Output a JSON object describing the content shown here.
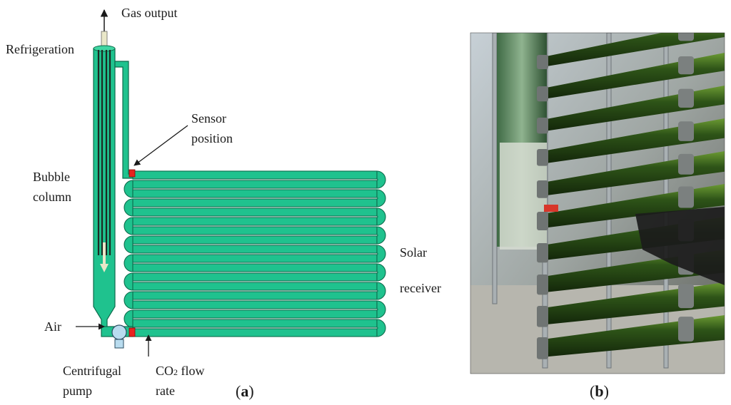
{
  "panel_a": {
    "labels": {
      "gas_output": "Gas output",
      "refrigeration": "Refrigeration",
      "sensor_line1": "Sensor",
      "sensor_line2": "position",
      "bubble_line1": "Bubble",
      "bubble_line2": "column",
      "solar_line1": "Solar",
      "solar_line2": "receiver",
      "air": "Air",
      "pump_line1": "Centrifugal",
      "pump_line2": "pump",
      "co2_main": "CO",
      "co2_sub": "2",
      "co2_rest": " flow",
      "co2_line2": "rate"
    },
    "caption_open": "(",
    "caption_letter": "a",
    "caption_close": ")",
    "tube_count": 9,
    "colors": {
      "fluid": "#1fc28e",
      "fluid_stroke": "#0d6b4c",
      "sensor": "#e8231f",
      "pump": "#b9dcef"
    }
  },
  "panel_b": {
    "caption_open": "(",
    "caption_letter": "b",
    "caption_close": ")",
    "photo_rows": 10,
    "colors": {
      "tube_dark": "#1f3a12",
      "tube_light": "#4f7a25",
      "sky": "#c9d3de"
    }
  }
}
